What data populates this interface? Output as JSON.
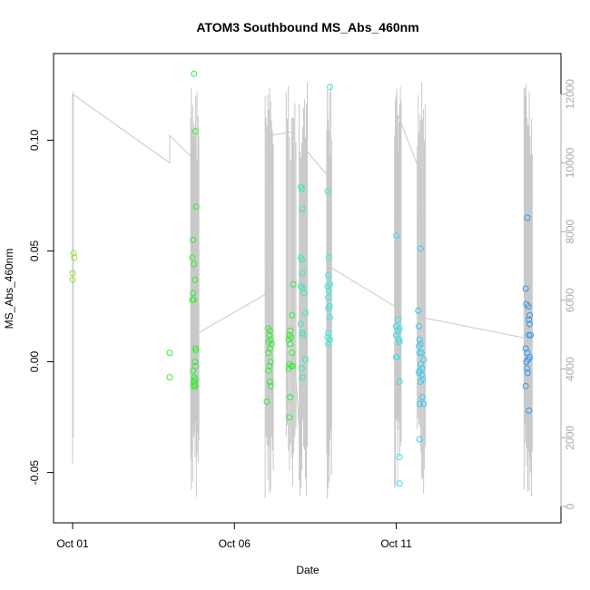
{
  "chart_data": {
    "type": "scatter",
    "title": "ATOM3 Southbound MS_Abs_460nm",
    "xlabel": "Date",
    "ylabel": "MS_Abs_460nm",
    "x_ticks": [
      "Oct 01",
      "Oct 06",
      "Oct 11"
    ],
    "y_ticks": [
      "-0.05",
      "0.00",
      "0.05",
      "0.10"
    ],
    "y_ticks_right": [
      "0",
      "2000",
      "4000",
      "6000",
      "8000",
      "10000",
      "12000"
    ],
    "xlim": [
      0.0,
      14.5
    ],
    "ylim": [
      -0.06,
      0.135
    ],
    "y2lim": [
      0,
      12600
    ],
    "grid": false,
    "series": [
      {
        "color": "#9be22f",
        "points": [
          [
            0.03,
            0.049
          ],
          [
            0.05,
            0.047
          ],
          [
            0.0,
            0.04
          ],
          [
            0.0,
            0.037
          ]
        ]
      },
      {
        "color": "#33ee33",
        "points": [
          [
            3.0,
            0.004
          ],
          [
            3.0,
            -0.007
          ],
          [
            3.75,
            0.13
          ],
          [
            3.8,
            0.104
          ],
          [
            3.82,
            0.07
          ],
          [
            3.72,
            0.055
          ],
          [
            3.7,
            0.047
          ],
          [
            3.75,
            0.044
          ],
          [
            3.78,
            0.037
          ],
          [
            3.72,
            0.031
          ],
          [
            3.7,
            0.028
          ],
          [
            3.74,
            0.028
          ],
          [
            3.8,
            0.006
          ],
          [
            3.82,
            0.005
          ],
          [
            3.78,
            0.0
          ],
          [
            3.8,
            -0.002
          ],
          [
            3.72,
            -0.004
          ],
          [
            3.76,
            -0.007
          ],
          [
            3.8,
            -0.008
          ],
          [
            3.74,
            -0.009
          ],
          [
            3.77,
            -0.01
          ],
          [
            3.79,
            -0.011
          ],
          [
            3.74,
            -0.011
          ],
          [
            6.05,
            0.015
          ],
          [
            6.1,
            0.014
          ],
          [
            6.08,
            0.012
          ],
          [
            6.12,
            0.01
          ],
          [
            6.06,
            0.009
          ],
          [
            6.15,
            0.008
          ],
          [
            6.1,
            0.006
          ],
          [
            6.05,
            0.004
          ],
          [
            6.12,
            0.0
          ],
          [
            6.08,
            -0.002
          ],
          [
            6.05,
            -0.004
          ],
          [
            6.1,
            -0.009
          ],
          [
            6.12,
            -0.011
          ],
          [
            6.0,
            -0.018
          ],
          [
            6.82,
            0.035
          ],
          [
            6.78,
            0.021
          ],
          [
            6.72,
            0.014
          ],
          [
            6.7,
            0.012
          ],
          [
            6.75,
            0.011
          ],
          [
            6.68,
            0.01
          ],
          [
            6.72,
            0.008
          ],
          [
            6.78,
            0.004
          ],
          [
            6.7,
            -0.001
          ],
          [
            6.75,
            -0.002
          ],
          [
            6.8,
            -0.002
          ],
          [
            6.68,
            -0.003
          ],
          [
            6.72,
            -0.016
          ],
          [
            6.7,
            -0.025
          ]
        ]
      },
      {
        "color": "#33eebb",
        "points": [
          [
            7.05,
            0.079
          ],
          [
            7.08,
            0.078
          ],
          [
            7.1,
            0.069
          ],
          [
            7.05,
            0.047
          ],
          [
            7.08,
            0.046
          ],
          [
            7.1,
            0.04
          ],
          [
            7.05,
            0.034
          ],
          [
            7.1,
            0.033
          ],
          [
            7.15,
            0.031
          ],
          [
            7.2,
            0.022
          ],
          [
            7.05,
            0.017
          ],
          [
            7.1,
            0.013
          ],
          [
            7.12,
            0.012
          ],
          [
            7.2,
            0.001
          ],
          [
            7.08,
            -0.003
          ],
          [
            7.1,
            -0.007
          ]
        ]
      },
      {
        "color": "#33eedd",
        "points": [
          [
            7.95,
            0.124
          ],
          [
            7.88,
            0.077
          ],
          [
            7.92,
            0.047
          ],
          [
            7.9,
            0.039
          ],
          [
            7.95,
            0.035
          ],
          [
            7.88,
            0.034
          ],
          [
            7.92,
            0.032
          ],
          [
            7.9,
            0.029
          ],
          [
            7.94,
            0.025
          ],
          [
            7.9,
            0.024
          ],
          [
            7.95,
            0.02
          ],
          [
            7.9,
            0.013
          ],
          [
            7.88,
            0.011
          ],
          [
            7.95,
            0.01
          ],
          [
            7.9,
            0.008
          ]
        ]
      },
      {
        "color": "#33e0ee",
        "points": [
          [
            10.0,
            0.057
          ],
          [
            10.05,
            0.019
          ],
          [
            10.0,
            0.016
          ],
          [
            10.1,
            0.015
          ],
          [
            10.05,
            0.014
          ],
          [
            10.0,
            0.012
          ],
          [
            10.08,
            0.01
          ],
          [
            10.1,
            0.009
          ],
          [
            10.02,
            0.002
          ],
          [
            10.0,
            0.002
          ],
          [
            10.1,
            -0.009
          ],
          [
            10.1,
            -0.043
          ],
          [
            10.1,
            -0.055
          ]
        ]
      },
      {
        "color": "#33ccee",
        "points": [
          [
            10.75,
            0.051
          ],
          [
            10.68,
            0.023
          ],
          [
            10.7,
            0.016
          ],
          [
            10.72,
            0.01
          ],
          [
            10.75,
            0.008
          ],
          [
            10.7,
            0.007
          ],
          [
            10.78,
            0.004
          ],
          [
            10.72,
            0.004
          ],
          [
            10.85,
            0.001
          ],
          [
            10.75,
            -0.001
          ],
          [
            10.8,
            -0.003
          ],
          [
            10.72,
            -0.004
          ],
          [
            10.7,
            -0.005
          ],
          [
            10.78,
            -0.006
          ],
          [
            10.82,
            -0.008
          ],
          [
            10.75,
            -0.009
          ],
          [
            10.8,
            -0.016
          ],
          [
            10.85,
            -0.019
          ],
          [
            10.72,
            -0.019
          ],
          [
            10.72,
            -0.035
          ]
        ]
      },
      {
        "color": "#3399ee",
        "points": [
          [
            14.05,
            0.065
          ],
          [
            14.0,
            0.033
          ],
          [
            14.02,
            0.026
          ],
          [
            14.08,
            0.025
          ],
          [
            14.12,
            0.021
          ],
          [
            14.1,
            0.019
          ],
          [
            14.12,
            0.017
          ],
          [
            14.15,
            0.012
          ],
          [
            14.1,
            0.012
          ],
          [
            14.0,
            0.006
          ],
          [
            14.05,
            0.004
          ],
          [
            14.12,
            0.002
          ],
          [
            14.08,
            0.001
          ],
          [
            14.02,
            0.0
          ],
          [
            14.04,
            -0.003
          ],
          [
            14.06,
            -0.005
          ],
          [
            14.0,
            -0.011
          ],
          [
            14.1,
            -0.022
          ]
        ]
      }
    ],
    "secondary_line": {
      "color": "#c8c8c8",
      "axis": "right",
      "points": [
        [
          0.0,
          2200
        ],
        [
          0.0,
          12000
        ],
        [
          3.0,
          10000
        ],
        [
          3.0,
          10800
        ],
        [
          3.75,
          10100
        ],
        [
          3.75,
          6000
        ],
        [
          3.8,
          5000
        ],
        [
          6.0,
          6200
        ],
        [
          6.1,
          10800
        ],
        [
          6.8,
          10900
        ],
        [
          6.8,
          5200
        ],
        [
          7.05,
          1500
        ],
        [
          7.1,
          9500
        ],
        [
          7.1,
          10500
        ],
        [
          7.9,
          9600
        ],
        [
          7.9,
          7000
        ],
        [
          10.0,
          5800
        ],
        [
          10.05,
          11400
        ],
        [
          10.75,
          9700
        ],
        [
          10.8,
          5500
        ],
        [
          14.0,
          4900
        ],
        [
          14.1,
          10000
        ]
      ]
    }
  }
}
